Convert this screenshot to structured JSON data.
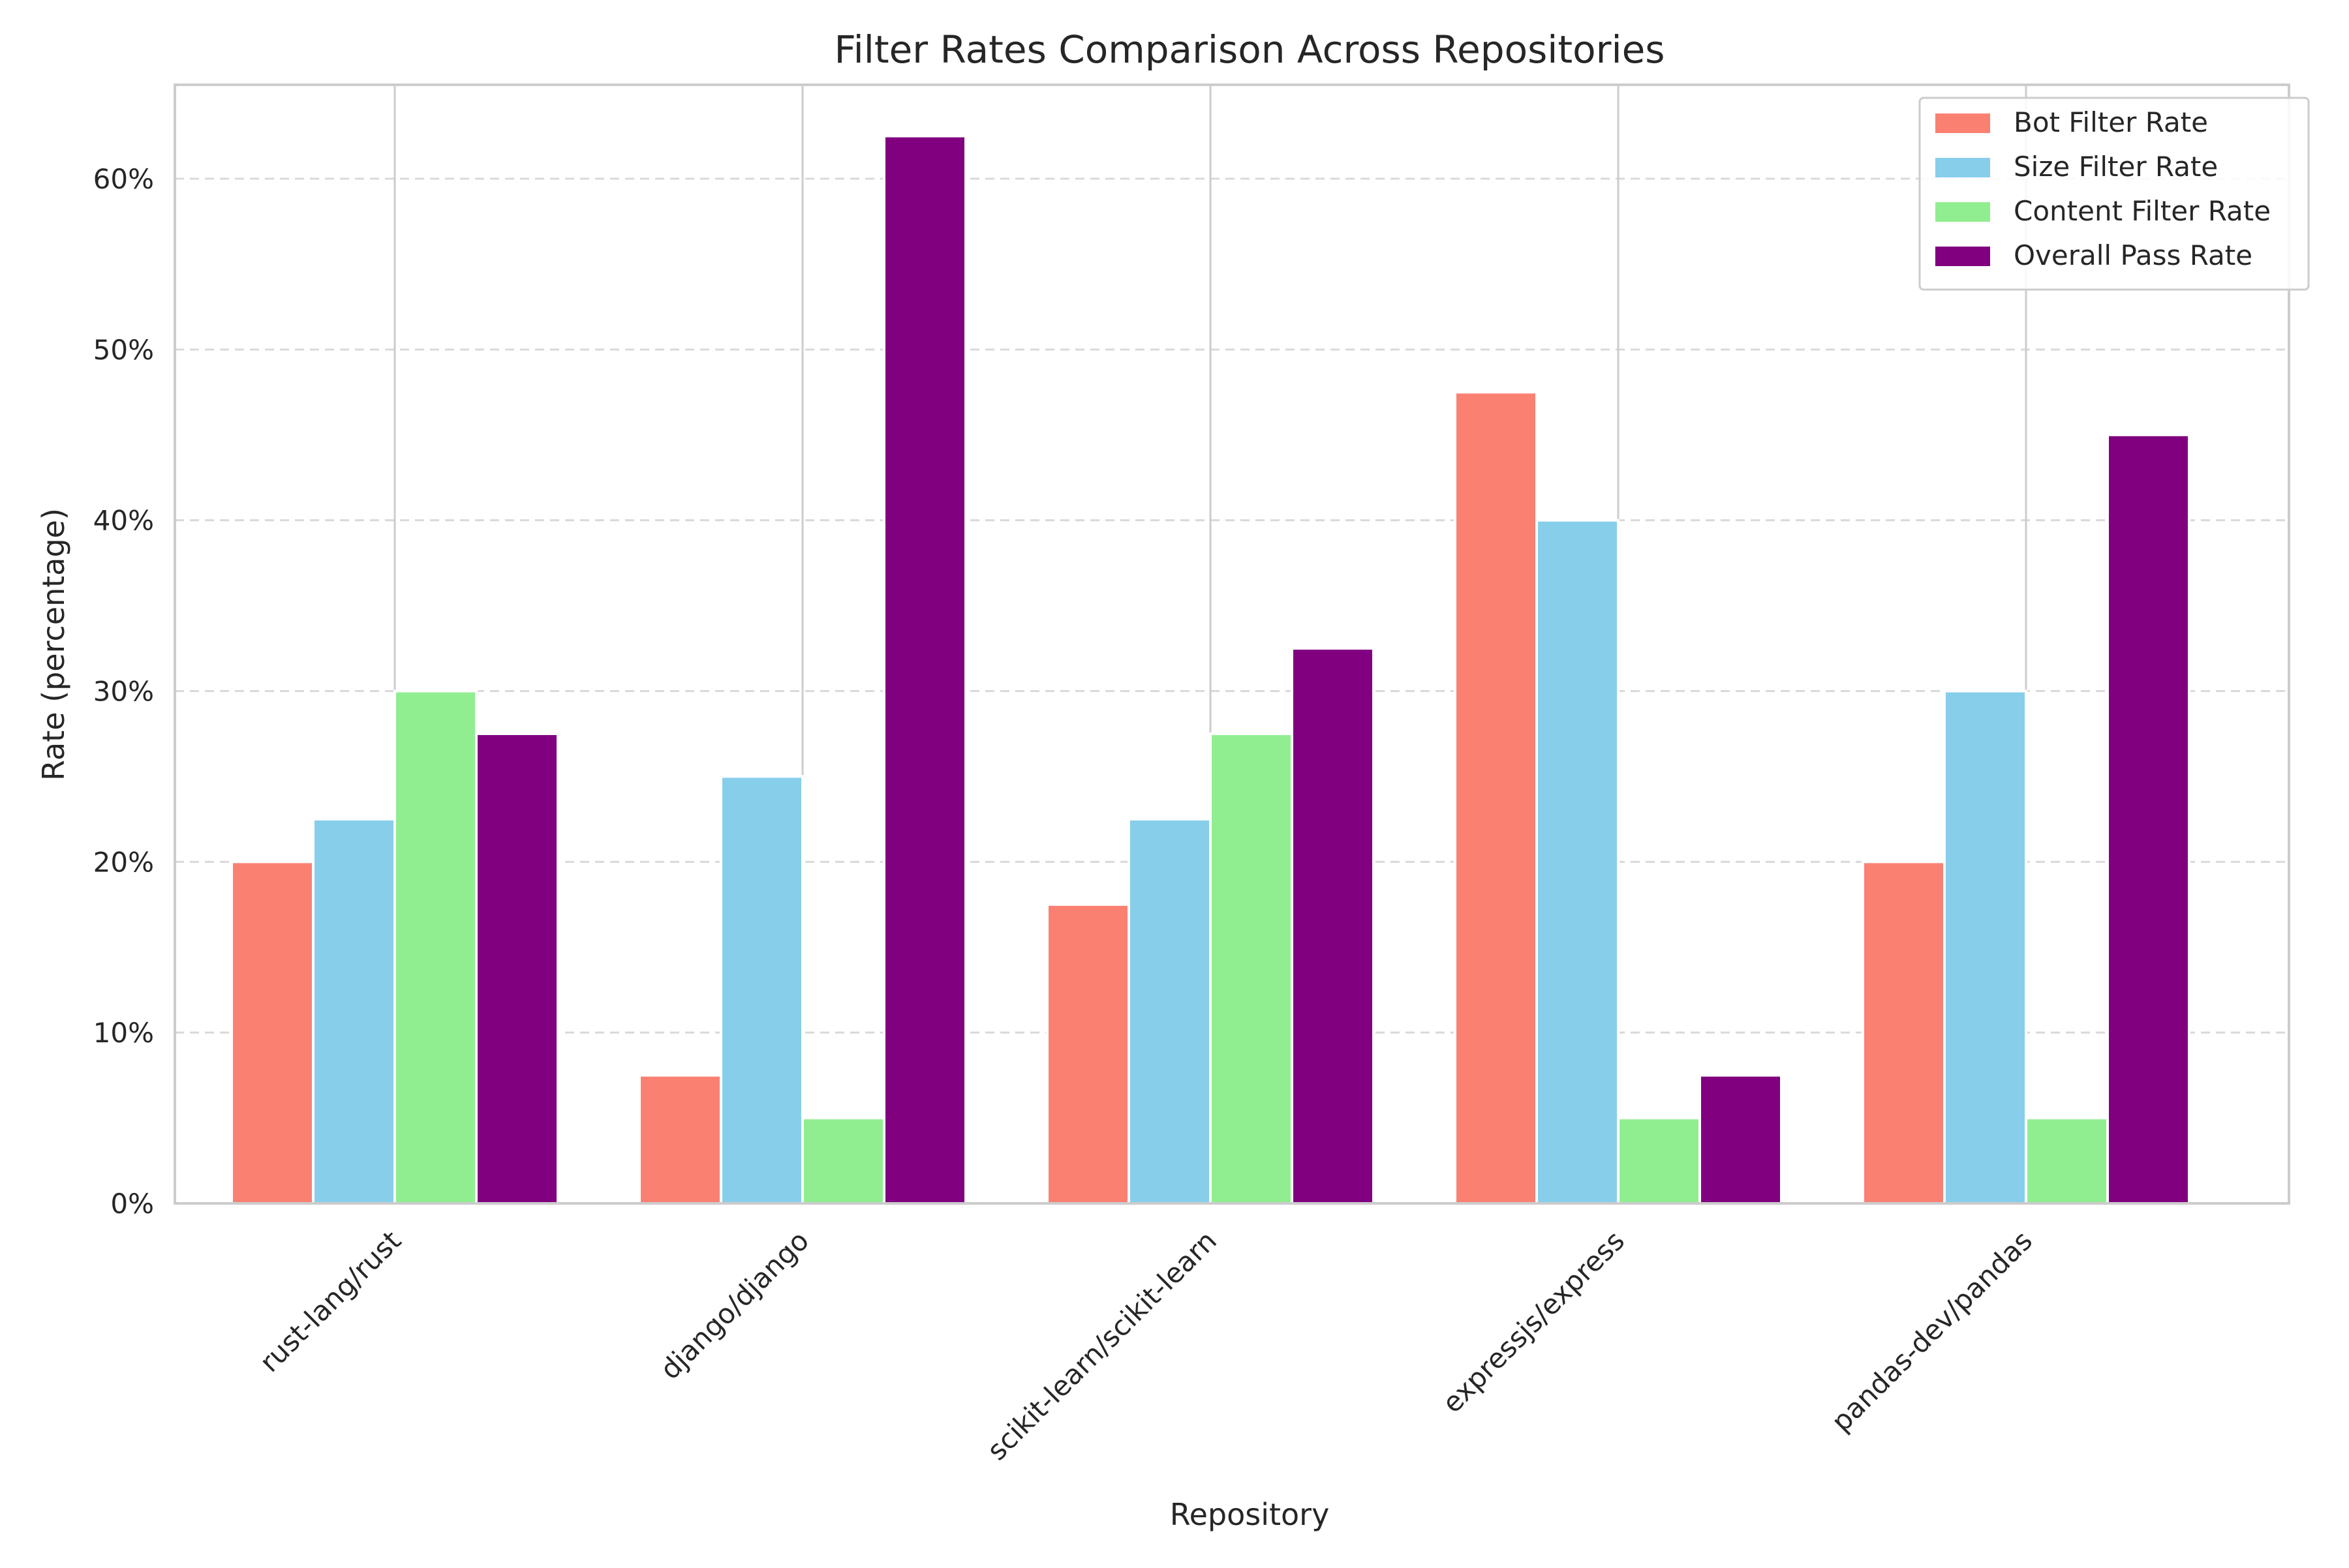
{
  "chart_data": {
    "type": "bar",
    "title": "Filter Rates Comparison Across Repositories",
    "xlabel": "Repository",
    "ylabel": "Rate (percentage)",
    "categories": [
      "rust-lang/rust",
      "django/django",
      "scikit-learn/scikit-learn",
      "expressjs/express",
      "pandas-dev/pandas"
    ],
    "series": [
      {
        "name": "Bot Filter Rate",
        "color": "#fa8072",
        "values": [
          20,
          7.5,
          17.5,
          47.5,
          20
        ]
      },
      {
        "name": "Size Filter Rate",
        "color": "#87ceeb",
        "values": [
          22.5,
          25,
          22.5,
          40,
          30
        ]
      },
      {
        "name": "Content Filter Rate",
        "color": "#90ee90",
        "values": [
          30,
          5,
          27.5,
          5,
          5
        ]
      },
      {
        "name": "Overall Pass Rate",
        "color": "#800080",
        "values": [
          27.5,
          62.5,
          32.5,
          7.5,
          45
        ]
      }
    ],
    "ylim": [
      0,
      65.5
    ],
    "yticks": [
      0,
      10,
      20,
      30,
      40,
      50,
      60
    ],
    "ytick_labels": [
      "0%",
      "10%",
      "20%",
      "30%",
      "40%",
      "50%",
      "60%"
    ],
    "grid": "horizontal dashed",
    "legend": "top-right",
    "frame_color": "#cccccc",
    "grid_color": "#d9d9d9",
    "text_color": "#262626"
  }
}
